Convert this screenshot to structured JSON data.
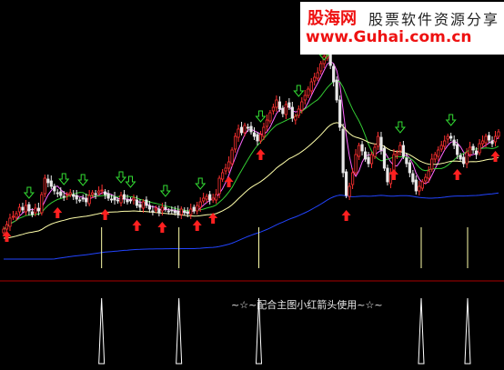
{
  "watermark": {
    "site_cn": "股海网",
    "slogan": "股票软件资源分享",
    "url": "www.Guhai.com.cn"
  },
  "indicator_note": "~☆~配合主图小红箭头使用~☆~",
  "colors": {
    "background": "#000000",
    "candle_up": "#ff3030",
    "candle_down": "#e8e8e8",
    "ma_short": "#ff66ff",
    "ma_mid": "#33cc33",
    "ma_long": "#ffffaa",
    "ma_very_long": "#2244ff",
    "up_arrow": "#ff2020",
    "down_arrow": "#33dd33",
    "signal_line": "#ffffaa",
    "separator": "#aa0000"
  },
  "chart_data": {
    "type": "candlestick",
    "closes": [
      252,
      247,
      240,
      238,
      235,
      228,
      231,
      226,
      232,
      236,
      229,
      232,
      214,
      196,
      201,
      205,
      210,
      212,
      215,
      217,
      214,
      212,
      216,
      219,
      220,
      218,
      222,
      215,
      212,
      214,
      210,
      209,
      214,
      218,
      219,
      220,
      221,
      215,
      219,
      222,
      220,
      218,
      226,
      228,
      222,
      226,
      230,
      232,
      229,
      234,
      228,
      230,
      232,
      231,
      234,
      236,
      230,
      234,
      235,
      230,
      232,
      226,
      222,
      218,
      216,
      220,
      218,
      214,
      196,
      190,
      185,
      178,
      165,
      150,
      142,
      146,
      138,
      140,
      145,
      150,
      155,
      148,
      140,
      132,
      124,
      118,
      110,
      120,
      125,
      115,
      118,
      130,
      128,
      120,
      112,
      105,
      98,
      90,
      85,
      80,
      70,
      62,
      55,
      72,
      90,
      110,
      140,
      190,
      215,
      205,
      190,
      170,
      160,
      166,
      175,
      180,
      170,
      162,
      150,
      165,
      185,
      200,
      190,
      170,
      168,
      160,
      172,
      180,
      190,
      200,
      210,
      205,
      200,
      195,
      188,
      175,
      170,
      165,
      160,
      155,
      150,
      152,
      160,
      170,
      175,
      180,
      168,
      162,
      165,
      170,
      158,
      155,
      150,
      154,
      158,
      150,
      145
    ],
    "up_signals": [
      1,
      17,
      32,
      42,
      50,
      61,
      66,
      71,
      81,
      108,
      123,
      143,
      155
    ],
    "down_signals": [
      8,
      19,
      25,
      37,
      40,
      51,
      62,
      81,
      93,
      101,
      125,
      141,
      160
    ],
    "indicator_spikes": [
      38,
      68,
      99,
      162,
      180
    ]
  }
}
